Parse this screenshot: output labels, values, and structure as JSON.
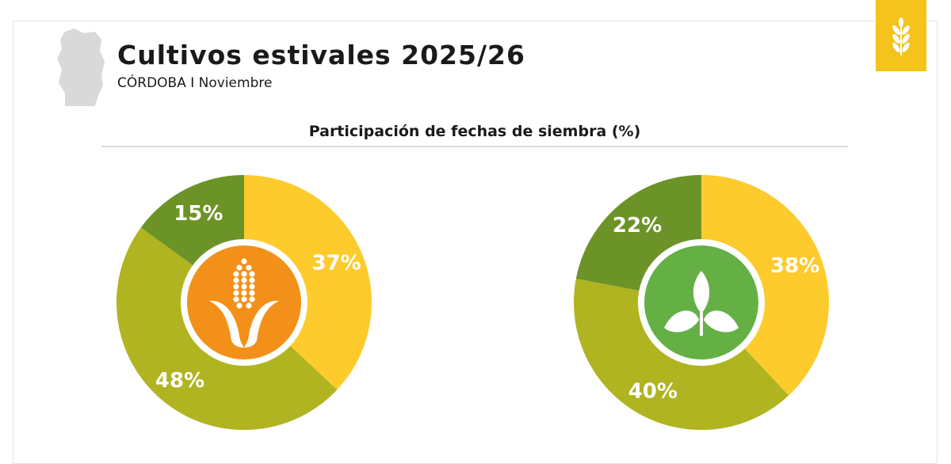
{
  "header": {
    "title": "Cultivos estivales 2025/26",
    "subtitle": "CÓRDOBA I Noviembre",
    "map_icon": "cordoba-province-map-icon",
    "logo_icon": "wheat-icon",
    "logo_color": "#f4c41c"
  },
  "chart_data": [
    {
      "type": "pie",
      "title": "Participación de fechas de siembra (%)",
      "center_icon": "corn-icon",
      "center_color": "#f39019",
      "values": [
        37,
        48,
        15
      ],
      "labels": [
        "37%",
        "48%",
        "15%"
      ],
      "colors": [
        "#fdcb2c",
        "#b0b420",
        "#6c9327"
      ]
    },
    {
      "type": "pie",
      "title": "Participación de fechas de siembra (%)",
      "center_icon": "soybean-sprout-icon",
      "center_color": "#64b045",
      "values": [
        38,
        40,
        22
      ],
      "labels": [
        "38%",
        "40%",
        "22%"
      ],
      "colors": [
        "#fdcb2c",
        "#b0b420",
        "#6c9327"
      ]
    }
  ]
}
